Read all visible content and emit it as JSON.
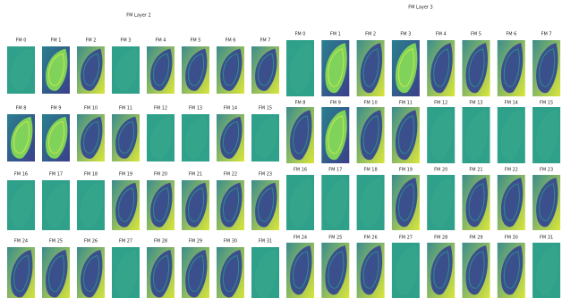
{
  "panels": [
    {
      "title": "FM Layer 2",
      "labels": [
        "FM 0",
        "FM 1",
        "FM 2",
        "FM 3",
        "FM 4",
        "FM 5",
        "FM 6",
        "FM 7",
        "FM 8",
        "FM 9",
        "FM 10",
        "FM 11",
        "FM 12",
        "FM 13",
        "FM 14",
        "FM 15",
        "FM 16",
        "FM 17",
        "FM 18",
        "FM 19",
        "FM 20",
        "FM 21",
        "FM 22",
        "FM 23",
        "FM 24",
        "FM 25",
        "FM 26",
        "FM 27",
        "FM 28",
        "FM 29",
        "FM 30",
        "FM 31"
      ]
    },
    {
      "title": "FM Layer 3",
      "labels": [
        "FM 0",
        "FM 1",
        "FM 2",
        "FM 3",
        "FM 4",
        "FM 5",
        "FM 6",
        "FM 7",
        "FM 8",
        "FM 9",
        "FM 10",
        "FM 11",
        "FM 12",
        "FM 13",
        "FM 14",
        "FM 15",
        "FM 16",
        "FM 17",
        "FM 18",
        "FM 19",
        "FM 20",
        "FM 21",
        "FM 22",
        "FM 23",
        "FM 24",
        "FM 25",
        "FM 26",
        "FM 27",
        "FM 28",
        "FM 29",
        "FM 30",
        "FM 31"
      ]
    }
  ]
}
